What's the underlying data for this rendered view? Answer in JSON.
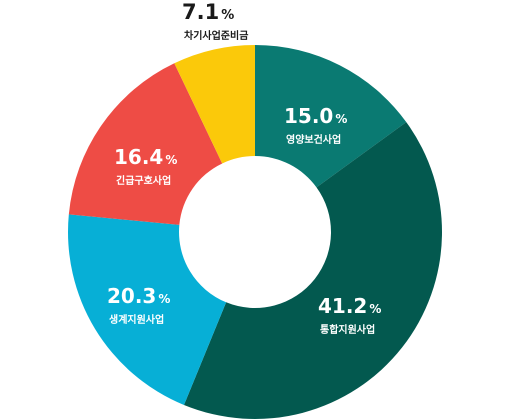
{
  "chart_data": {
    "type": "pie",
    "style": "donut",
    "categories": [
      "영양보건사업",
      "통합지원사업",
      "생계지원사업",
      "긴급구호사업",
      "차기사업준비금"
    ],
    "values": [
      15.0,
      41.2,
      20.3,
      16.4,
      7.1
    ],
    "value_labels": [
      "15.0",
      "41.2",
      "20.3",
      "16.4",
      "7.1"
    ],
    "unit": "%",
    "colors": [
      "#0a7a72",
      "#03594f",
      "#07afd6",
      "#ee4c45",
      "#fbc90a"
    ],
    "label_colors": [
      "#ffffff",
      "#ffffff",
      "#ffffff",
      "#ffffff",
      "#1a1a1a"
    ],
    "start": "top",
    "direction": "clockwise"
  }
}
